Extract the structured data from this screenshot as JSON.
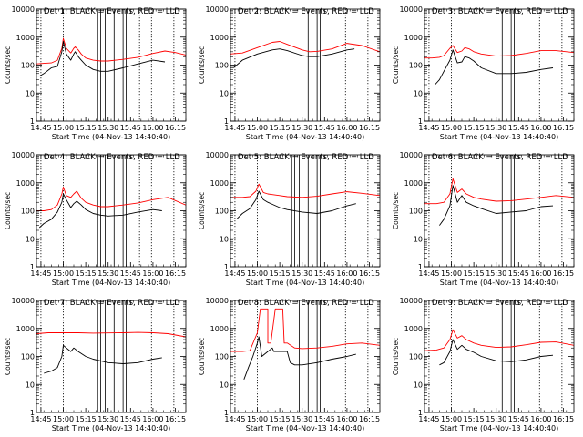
{
  "chart_data": {
    "type": "line",
    "y_scale": "log",
    "ylim": [
      1,
      10000
    ],
    "y_ticks": [
      1,
      10,
      100,
      1000,
      10000
    ],
    "y_tick_labels": [
      "1",
      "10",
      "100",
      "1000",
      "10000"
    ],
    "x_range_minutes": [
      "14:42",
      "16:22"
    ],
    "x_ticks": [
      "14:45",
      "15:00",
      "15:15",
      "15:30",
      "15:45",
      "16:00",
      "16:15"
    ],
    "ylabel": "Counts/sec",
    "xlabel": "Start Time (04-Nov-13 14:40:40)",
    "colors": {
      "events": "#000000",
      "lld": "#ff0000"
    },
    "panels": [
      {
        "title": "Det 1: BLACK = Events, RED = LLD",
        "dotted_lines": [
          "14:45",
          "15:00",
          "15:51",
          "15:59",
          "16:14"
        ],
        "solid_lines": [
          "15:23",
          "15:25",
          "15:28",
          "15:34",
          "15:40",
          "15:42"
        ],
        "series": [
          {
            "name": "Events",
            "color": "black",
            "x": [
              "14:44",
              "14:47",
              "14:52",
              "14:56",
              "14:59",
              "15:00",
              "15:02",
              "15:05",
              "15:07",
              "15:08",
              "15:10",
              "15:12",
              "15:15",
              "15:20",
              "15:25",
              "15:30",
              "15:40",
              "15:50",
              "16:00",
              "16:08"
            ],
            "y": [
              40,
              50,
              80,
              90,
              300,
              700,
              250,
              150,
              250,
              300,
              200,
              150,
              100,
              70,
              60,
              60,
              80,
              110,
              150,
              130
            ]
          },
          {
            "name": "LLD",
            "color": "red",
            "x": [
              "14:42",
              "14:47",
              "14:52",
              "14:56",
              "14:59",
              "15:00",
              "15:02",
              "15:05",
              "15:07",
              "15:08",
              "15:10",
              "15:12",
              "15:15",
              "15:20",
              "15:25",
              "15:30",
              "15:40",
              "15:50",
              "16:00",
              "16:08",
              "16:15",
              "16:22"
            ],
            "y": [
              110,
              115,
              120,
              150,
              400,
              900,
              400,
              270,
              400,
              450,
              350,
              250,
              180,
              150,
              140,
              140,
              160,
              190,
              260,
              320,
              280,
              230
            ]
          }
        ]
      },
      {
        "title": "Det 2: BLACK = Events, RED = LLD",
        "dotted_lines": [
          "14:45",
          "15:59",
          "16:14"
        ],
        "solid_lines": [
          "15:34",
          "15:40",
          "15:42"
        ],
        "series": [
          {
            "name": "Events",
            "color": "black",
            "x": [
              "14:44",
              "14:50",
              "15:00",
              "15:10",
              "15:15",
              "15:20",
              "15:30",
              "15:35",
              "15:40",
              "15:50",
              "16:00",
              "16:05"
            ],
            "y": [
              80,
              150,
              250,
              350,
              380,
              330,
              220,
              200,
              200,
              250,
              350,
              380
            ]
          },
          {
            "name": "LLD",
            "color": "red",
            "x": [
              "14:42",
              "14:50",
              "15:00",
              "15:10",
              "15:15",
              "15:20",
              "15:30",
              "15:35",
              "15:40",
              "15:50",
              "16:00",
              "16:10",
              "16:22"
            ],
            "y": [
              250,
              270,
              420,
              650,
              700,
              550,
              350,
              300,
              310,
              380,
              600,
              500,
              300
            ]
          }
        ]
      },
      {
        "title": "Det 3: BLACK = Events, RED = LLD",
        "dotted_lines": [
          "14:45",
          "15:00",
          "15:59",
          "16:14"
        ],
        "solid_lines": [
          "15:34",
          "15:40",
          "15:42"
        ],
        "series": [
          {
            "name": "Events",
            "color": "black",
            "x": [
              "14:49",
              "14:52",
              "14:55",
              "14:59",
              "15:01",
              "15:04",
              "15:07",
              "15:09",
              "15:12",
              "15:15",
              "15:20",
              "15:30",
              "15:40",
              "15:50",
              "16:00",
              "16:08"
            ],
            "y": [
              20,
              30,
              60,
              150,
              350,
              120,
              130,
              200,
              180,
              140,
              80,
              50,
              50,
              55,
              70,
              80
            ]
          },
          {
            "name": "LLD",
            "color": "red",
            "x": [
              "14:42",
              "14:47",
              "14:52",
              "14:55",
              "14:59",
              "15:01",
              "15:04",
              "15:07",
              "15:09",
              "15:12",
              "15:15",
              "15:20",
              "15:30",
              "15:40",
              "15:50",
              "16:00",
              "16:10",
              "16:22"
            ],
            "y": [
              180,
              180,
              190,
              220,
              400,
              500,
              280,
              320,
              420,
              380,
              300,
              250,
              210,
              220,
              260,
              330,
              330,
              280
            ]
          }
        ]
      },
      {
        "title": "Det 4: BLACK = Events, RED = LLD",
        "dotted_lines": [
          "14:45",
          "15:00",
          "15:51",
          "15:59",
          "16:14"
        ],
        "solid_lines": [
          "15:23",
          "15:25",
          "15:28",
          "15:34",
          "15:40",
          "15:42"
        ],
        "series": [
          {
            "name": "Events",
            "color": "black",
            "x": [
              "14:44",
              "14:47",
              "14:52",
              "14:56",
              "14:59",
              "15:00",
              "15:02",
              "15:05",
              "15:07",
              "15:09",
              "15:12",
              "15:15",
              "15:20",
              "15:25",
              "15:30",
              "15:40",
              "15:50",
              "16:00",
              "16:06"
            ],
            "y": [
              25,
              35,
              50,
              90,
              200,
              400,
              250,
              130,
              180,
              220,
              160,
              110,
              80,
              70,
              65,
              70,
              90,
              110,
              100
            ]
          },
          {
            "name": "LLD",
            "color": "red",
            "x": [
              "14:42",
              "14:47",
              "14:52",
              "14:56",
              "14:59",
              "15:00",
              "15:02",
              "15:05",
              "15:07",
              "15:09",
              "15:12",
              "15:15",
              "15:20",
              "15:25",
              "15:30",
              "15:40",
              "15:50",
              "16:00",
              "16:10",
              "16:22"
            ],
            "y": [
              100,
              100,
              110,
              160,
              400,
              700,
              350,
              300,
              400,
              500,
              280,
              200,
              160,
              140,
              140,
              160,
              190,
              250,
              300,
              160
            ]
          }
        ]
      },
      {
        "title": "Det 5: BLACK = Events, RED = LLD",
        "dotted_lines": [
          "14:45",
          "15:00",
          "15:59",
          "16:14"
        ],
        "solid_lines": [
          "15:23",
          "15:25",
          "15:28",
          "15:34",
          "15:40",
          "15:42"
        ],
        "series": [
          {
            "name": "Events",
            "color": "black",
            "x": [
              "14:46",
              "14:50",
              "14:55",
              "14:59",
              "15:01",
              "15:04",
              "15:07",
              "15:10",
              "15:15",
              "15:20",
              "15:30",
              "15:40",
              "15:50",
              "16:00",
              "16:06"
            ],
            "y": [
              50,
              80,
              120,
              250,
              500,
              250,
              200,
              170,
              130,
              110,
              90,
              80,
              100,
              150,
              180
            ]
          },
          {
            "name": "LLD",
            "color": "red",
            "x": [
              "14:42",
              "14:50",
              "14:55",
              "14:59",
              "15:01",
              "15:04",
              "15:07",
              "15:10",
              "15:15",
              "15:20",
              "15:30",
              "15:40",
              "15:50",
              "16:00",
              "16:10",
              "16:22"
            ],
            "y": [
              300,
              300,
              320,
              500,
              900,
              450,
              400,
              380,
              350,
              320,
              300,
              330,
              400,
              480,
              420,
              350
            ]
          }
        ]
      },
      {
        "title": "Det 6: BLACK = Events, RED = LLD",
        "dotted_lines": [
          "14:45",
          "15:00",
          "15:59",
          "16:14"
        ],
        "solid_lines": [
          "15:34",
          "15:40",
          "15:42"
        ],
        "series": [
          {
            "name": "Events",
            "color": "black",
            "x": [
              "14:52",
              "14:55",
              "14:59",
              "15:01",
              "15:04",
              "15:07",
              "15:10",
              "15:15",
              "15:20",
              "15:30",
              "15:40",
              "15:50",
              "16:00",
              "16:08"
            ],
            "y": [
              30,
              50,
              150,
              800,
              200,
              350,
              200,
              150,
              120,
              80,
              90,
              100,
              140,
              150
            ]
          },
          {
            "name": "LLD",
            "color": "red",
            "x": [
              "14:42",
              "14:50",
              "14:55",
              "14:59",
              "15:01",
              "15:04",
              "15:07",
              "15:10",
              "15:15",
              "15:20",
              "15:30",
              "15:40",
              "15:50",
              "16:00",
              "16:10",
              "16:22"
            ],
            "y": [
              180,
              180,
              200,
              400,
              1400,
              450,
              600,
              400,
              300,
              260,
              220,
              230,
              260,
              300,
              350,
              300
            ]
          }
        ]
      },
      {
        "title": "Det 7: BLACK = Events, RED = LLD",
        "dotted_lines": [
          "14:45",
          "15:00",
          "15:59",
          "16:14"
        ],
        "solid_lines": [
          "15:23",
          "15:25",
          "15:28",
          "15:34",
          "15:40",
          "15:42"
        ],
        "series": [
          {
            "name": "Events",
            "color": "black",
            "x": [
              "14:47",
              "14:52",
              "14:56",
              "14:59",
              "15:00",
              "15:02",
              "15:05",
              "15:07",
              "15:10",
              "15:15",
              "15:20",
              "15:30",
              "15:40",
              "15:50",
              "16:00",
              "16:06"
            ],
            "y": [
              25,
              30,
              40,
              100,
              250,
              200,
              150,
              200,
              150,
              100,
              80,
              60,
              55,
              60,
              80,
              90
            ]
          },
          {
            "name": "LLD",
            "color": "red",
            "x": [
              "14:42",
              "14:50",
              "15:00",
              "15:10",
              "15:20",
              "15:30",
              "15:40",
              "15:50",
              "16:00",
              "16:10",
              "16:22"
            ],
            "y": [
              650,
              700,
              700,
              700,
              680,
              690,
              700,
              720,
              700,
              650,
              500
            ]
          }
        ]
      },
      {
        "title": "Det 8: BLACK = Events, RED = LLD",
        "dotted_lines": [
          "14:45",
          "15:00",
          "15:59",
          "16:14"
        ],
        "solid_lines": [
          "15:28",
          "15:34",
          "15:40",
          "15:42"
        ],
        "series": [
          {
            "name": "Events",
            "color": "black",
            "x": [
              "14:51",
              "14:54",
              "14:57",
              "15:00",
              "15:01",
              "15:03",
              "15:07",
              "15:10",
              "15:11",
              "15:20",
              "15:22",
              "15:25",
              "15:30",
              "15:40",
              "15:50",
              "16:00",
              "16:06"
            ],
            "y": [
              15,
              40,
              100,
              300,
              500,
              100,
              150,
              200,
              150,
              150,
              60,
              50,
              50,
              60,
              80,
              100,
              120
            ]
          },
          {
            "name": "LLD",
            "color": "red",
            "x": [
              "14:42",
              "14:50",
              "14:55",
              "15:00",
              "15:02",
              "15:03",
              "15:07",
              "15:07",
              "15:09",
              "15:12",
              "15:13",
              "15:17",
              "15:18",
              "15:20",
              "15:25",
              "15:30",
              "15:40",
              "15:50",
              "16:00",
              "16:10",
              "16:22"
            ],
            "y": [
              150,
              150,
              160,
              700,
              5000,
              5000,
              5000,
              300,
              300,
              5000,
              5000,
              5000,
              300,
              300,
              200,
              190,
              200,
              230,
              280,
              300,
              250
            ]
          }
        ]
      },
      {
        "title": "Det 9: BLACK = Events, RED = LLD",
        "dotted_lines": [
          "14:45",
          "15:00",
          "15:59",
          "16:14"
        ],
        "solid_lines": [
          "15:34",
          "15:40",
          "15:42"
        ],
        "series": [
          {
            "name": "Events",
            "color": "black",
            "x": [
              "14:52",
              "14:55",
              "14:59",
              "15:01",
              "15:04",
              "15:07",
              "15:10",
              "15:15",
              "15:20",
              "15:30",
              "15:40",
              "15:50",
              "16:00",
              "16:08"
            ],
            "y": [
              50,
              60,
              150,
              400,
              180,
              250,
              180,
              140,
              100,
              70,
              65,
              75,
              100,
              110
            ]
          },
          {
            "name": "LLD",
            "color": "red",
            "x": [
              "14:42",
              "14:50",
              "14:55",
              "14:59",
              "15:01",
              "15:04",
              "15:07",
              "15:10",
              "15:15",
              "15:20",
              "15:30",
              "15:40",
              "15:50",
              "16:00",
              "16:10",
              "16:22"
            ],
            "y": [
              160,
              170,
              200,
              400,
              900,
              450,
              550,
              400,
              300,
              250,
              210,
              220,
              260,
              320,
              330,
              250
            ]
          }
        ]
      }
    ]
  }
}
